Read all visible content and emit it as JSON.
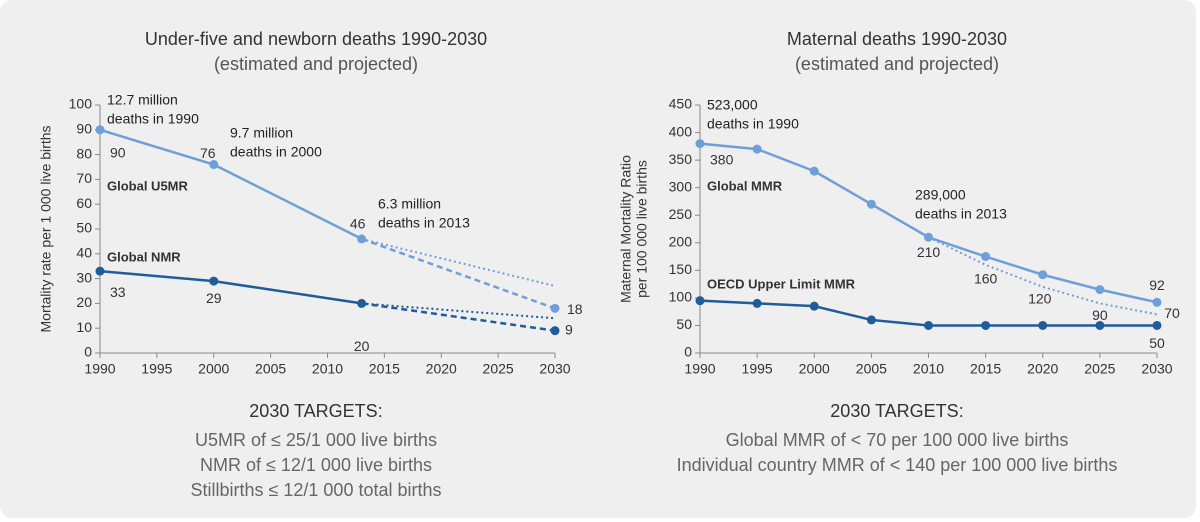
{
  "chart_data": [
    {
      "type": "line",
      "title": "Under-five and newborn deaths 1990-2030",
      "subtitle": "(estimated and projected)",
      "y_label": [
        "Mortality rate per 1 000 live births"
      ],
      "xlim": [
        1990,
        2030
      ],
      "xticks": [
        1990,
        1995,
        2000,
        2005,
        2010,
        2015,
        2020,
        2025,
        2030
      ],
      "ylim": [
        0,
        100
      ],
      "yticks": [
        0,
        10,
        20,
        30,
        40,
        50,
        60,
        70,
        80,
        90,
        100
      ],
      "series": [
        {
          "name": "Global U5MR",
          "color": "#6f9fd8",
          "x": [
            1990,
            2000,
            2013,
            2030
          ],
          "values": [
            90,
            76,
            46,
            18
          ],
          "label_indices": [
            0,
            1,
            2,
            3
          ],
          "projected_from": 2013,
          "trend_x": [
            2013,
            2030
          ],
          "trend_values": [
            46,
            27
          ],
          "trend_label_indices": []
        },
        {
          "name": "Global NMR",
          "color": "#1f5c99",
          "x": [
            1990,
            2000,
            2013,
            2030
          ],
          "values": [
            33,
            29,
            20,
            9
          ],
          "label_indices": [
            0,
            1,
            2,
            3
          ],
          "projected_from": 2013,
          "trend_x": [
            2013,
            2030
          ],
          "trend_values": [
            20,
            14
          ],
          "trend_label_indices": []
        }
      ],
      "annotations": [
        {
          "lines": [
            "12.7 million",
            "deaths in 1990"
          ]
        },
        {
          "lines": [
            "9.7 million",
            "deaths in 2000"
          ]
        },
        {
          "lines": [
            "6.3 million",
            "deaths in 2013"
          ]
        }
      ],
      "targets_title": "2030 TARGETS:",
      "targets": [
        "U5MR of ≤ 25/1 000 live births",
        "NMR of ≤ 12/1 000 live births",
        "Stillbirths ≤ 12/1 000 total births"
      ]
    },
    {
      "type": "line",
      "title": "Maternal deaths 1990-2030",
      "subtitle": "(estimated and projected)",
      "y_label": [
        "Maternal Mortality Ratio",
        "per 100 000 live births"
      ],
      "xlim": [
        1990,
        2030
      ],
      "xticks": [
        1990,
        1995,
        2000,
        2005,
        2010,
        2015,
        2020,
        2025,
        2030
      ],
      "ylim": [
        0,
        450
      ],
      "yticks": [
        0,
        50,
        100,
        150,
        200,
        250,
        300,
        350,
        400,
        450
      ],
      "series": [
        {
          "name": "Global MMR",
          "color": "#6f9fd8",
          "x": [
            1990,
            1995,
            2000,
            2005,
            2010,
            2015,
            2020,
            2025,
            2030
          ],
          "values": [
            380,
            370,
            330,
            270,
            210,
            175,
            142,
            115,
            92
          ],
          "label_indices": [
            0,
            4,
            8
          ],
          "trend_x": [
            2010,
            2015,
            2020,
            2025,
            2030
          ],
          "trend_values": [
            210,
            160,
            120,
            90,
            70
          ],
          "trend_label_indices": [
            1,
            2,
            3,
            4
          ]
        },
        {
          "name": "OECD Upper Limit MMR",
          "color": "#1f5c99",
          "x": [
            1990,
            1995,
            2000,
            2005,
            2010,
            2015,
            2020,
            2025,
            2030
          ],
          "values": [
            95,
            90,
            85,
            60,
            50,
            50,
            50,
            50,
            50
          ],
          "label_indices": [
            8
          ],
          "trend_x": [],
          "trend_values": [],
          "trend_label_indices": []
        }
      ],
      "annotations": [
        {
          "lines": [
            "523,000",
            "deaths in 1990"
          ]
        },
        {
          "lines": [
            "289,000",
            "deaths in 2013"
          ]
        }
      ],
      "targets_title": "2030 TARGETS:",
      "targets": [
        "Global MMR of < 70 per 100 000 live births",
        "Individual country MMR of < 140 per 100 000 live births"
      ]
    }
  ]
}
